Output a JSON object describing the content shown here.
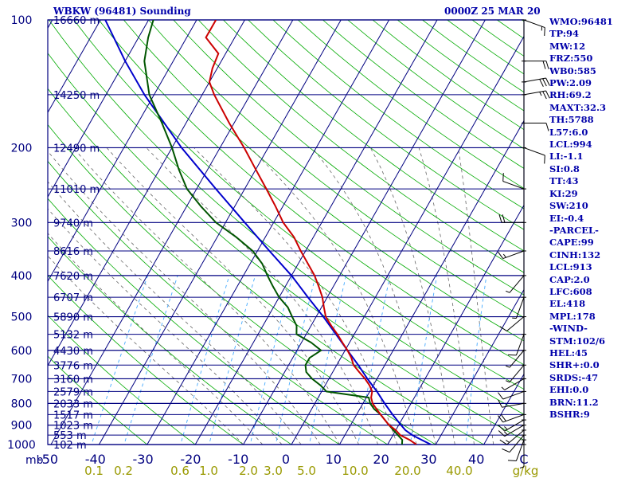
{
  "header": {
    "station": "WBKW (96481) Sounding",
    "time": "0000Z 25 MAR 20"
  },
  "indices": [
    "WMO:96481",
    "TP:94",
    "MW:12",
    "FRZ:550",
    "WB0:585",
    "PW:2.09",
    "RH:69.2",
    "MAXT:32.3",
    "TH:5788",
    "L57:6.0",
    "LCL:994",
    "LI:-1.1",
    "SI:0.8",
    "TT:43",
    "KI:29",
    "SW:210",
    "EI:-0.4",
    "-PARCEL-",
    "CAPE:99",
    "CINH:132",
    "LCL:913",
    "CAP:2.0",
    "LFC:608",
    "EL:418",
    "MPL:178",
    "-WIND-",
    "STM:102/6",
    "HEL:45",
    "SHR+:0.0",
    "SRDS:-47",
    "EHI:0.0",
    "BRN:11.2",
    "BSHR:9"
  ],
  "colors": {
    "frame": "#000080",
    "isotherm": "#000080",
    "dry_adiabat": "#00aa00",
    "moist_adiabat": "#666666",
    "mixing_ratio": "#44aaff",
    "temperature": "#cc0000",
    "dewpoint": "#005500",
    "parcel": "#0000cc",
    "wind": "#000000",
    "text": "#0000aa",
    "mr_label": "#999900"
  },
  "chart_data": {
    "type": "skew-t",
    "xlabel": "°C",
    "mixing_ratio_unit": "g/kg",
    "pressure_unit": "mb",
    "pressure_range": [
      1000,
      100
    ],
    "temp_range": [
      -50,
      50
    ],
    "pressure_ticks": [
      100,
      200,
      300,
      400,
      500,
      600,
      700,
      800,
      900,
      1000
    ],
    "pressure_tick_labels": [
      "100",
      "200",
      "300",
      "400",
      "500",
      "600",
      "700",
      "800",
      "900",
      "1000"
    ],
    "temp_ticks": [
      -50,
      -40,
      -30,
      -20,
      -10,
      0,
      10,
      20,
      30,
      40,
      50
    ],
    "temp_tick_labels": [
      "-50",
      "-40",
      "-30",
      "-20",
      "-10",
      "0",
      "10",
      "20",
      "30",
      "40",
      "C"
    ],
    "mixing_ratios": [
      0.1,
      0.2,
      0.6,
      1.0,
      2.0,
      3.0,
      5.0,
      10.0,
      20.0,
      40.0
    ],
    "mixing_ratio_labels": [
      "0.1",
      "0.2",
      "0.6",
      "1.0",
      "2.0",
      "3.0",
      "5.0",
      "10.0",
      "20.0",
      "40.0",
      "g/kg"
    ],
    "height_levels": [
      {
        "p": 100,
        "label": "16660 m"
      },
      {
        "p": 150,
        "label": "14250 m"
      },
      {
        "p": 200,
        "label": "12490 m"
      },
      {
        "p": 250,
        "label": "11010 m"
      },
      {
        "p": 300,
        "label": "9740 m"
      },
      {
        "p": 350,
        "label": "8616 m"
      },
      {
        "p": 400,
        "label": "7620 m"
      },
      {
        "p": 450,
        "label": "6707 m"
      },
      {
        "p": 500,
        "label": "5890 m"
      },
      {
        "p": 550,
        "label": "5132 m"
      },
      {
        "p": 600,
        "label": "4430 m"
      },
      {
        "p": 650,
        "label": "3776 m"
      },
      {
        "p": 700,
        "label": "3160 m"
      },
      {
        "p": 750,
        "label": "2579 m"
      },
      {
        "p": 800,
        "label": "2033 m"
      },
      {
        "p": 850,
        "label": "1517 m"
      },
      {
        "p": 900,
        "label": "1023 m"
      },
      {
        "p": 950,
        "label": "553 m"
      },
      {
        "p": 1000,
        "label": "102 m"
      }
    ],
    "temperature": [
      {
        "p": 1000,
        "t": 26
      },
      {
        "p": 975,
        "t": 24
      },
      {
        "p": 950,
        "t": 21.5
      },
      {
        "p": 925,
        "t": 20
      },
      {
        "p": 900,
        "t": 18
      },
      {
        "p": 875,
        "t": 16.5
      },
      {
        "p": 850,
        "t": 15
      },
      {
        "p": 825,
        "t": 13.5
      },
      {
        "p": 800,
        "t": 12
      },
      {
        "p": 775,
        "t": 11
      },
      {
        "p": 750,
        "t": 10.5
      },
      {
        "p": 725,
        "t": 9.2
      },
      {
        "p": 700,
        "t": 7.5
      },
      {
        "p": 675,
        "t": 5.5
      },
      {
        "p": 650,
        "t": 3.5
      },
      {
        "p": 625,
        "t": 2.2
      },
      {
        "p": 600,
        "t": 0.5
      },
      {
        "p": 575,
        "t": -1.5
      },
      {
        "p": 550,
        "t": -3.5
      },
      {
        "p": 525,
        "t": -5.8
      },
      {
        "p": 500,
        "t": -8
      },
      {
        "p": 475,
        "t": -9.5
      },
      {
        "p": 450,
        "t": -11
      },
      {
        "p": 425,
        "t": -13
      },
      {
        "p": 400,
        "t": -15.2
      },
      {
        "p": 375,
        "t": -18
      },
      {
        "p": 350,
        "t": -21
      },
      {
        "p": 325,
        "t": -24
      },
      {
        "p": 300,
        "t": -28
      },
      {
        "p": 275,
        "t": -31.5
      },
      {
        "p": 250,
        "t": -35.5
      },
      {
        "p": 225,
        "t": -40
      },
      {
        "p": 200,
        "t": -45
      },
      {
        "p": 175,
        "t": -51
      },
      {
        "p": 150,
        "t": -57.5
      },
      {
        "p": 140,
        "t": -60
      },
      {
        "p": 130,
        "t": -61
      },
      {
        "p": 120,
        "t": -61.5
      },
      {
        "p": 110,
        "t": -66
      },
      {
        "p": 100,
        "t": -66
      }
    ],
    "dewpoint": [
      {
        "p": 1000,
        "t": 23
      },
      {
        "p": 975,
        "t": 22.5
      },
      {
        "p": 950,
        "t": 21
      },
      {
        "p": 925,
        "t": 19.5
      },
      {
        "p": 900,
        "t": 18
      },
      {
        "p": 850,
        "t": 15
      },
      {
        "p": 825,
        "t": 13
      },
      {
        "p": 800,
        "t": 11.5
      },
      {
        "p": 775,
        "t": 10.5
      },
      {
        "p": 750,
        "t": 1
      },
      {
        "p": 725,
        "t": -1
      },
      {
        "p": 700,
        "t": -3.5
      },
      {
        "p": 675,
        "t": -5.5
      },
      {
        "p": 650,
        "t": -6.5
      },
      {
        "p": 625,
        "t": -6.5
      },
      {
        "p": 600,
        "t": -5
      },
      {
        "p": 575,
        "t": -8
      },
      {
        "p": 550,
        "t": -12
      },
      {
        "p": 525,
        "t": -13
      },
      {
        "p": 500,
        "t": -15
      },
      {
        "p": 475,
        "t": -17
      },
      {
        "p": 450,
        "t": -20
      },
      {
        "p": 425,
        "t": -22.5
      },
      {
        "p": 400,
        "t": -25
      },
      {
        "p": 375,
        "t": -27.5
      },
      {
        "p": 350,
        "t": -31
      },
      {
        "p": 325,
        "t": -36
      },
      {
        "p": 300,
        "t": -42
      },
      {
        "p": 275,
        "t": -47
      },
      {
        "p": 250,
        "t": -52
      },
      {
        "p": 225,
        "t": -56
      },
      {
        "p": 200,
        "t": -60
      },
      {
        "p": 175,
        "t": -65
      },
      {
        "p": 150,
        "t": -71
      },
      {
        "p": 125,
        "t": -76
      },
      {
        "p": 110,
        "t": -78
      },
      {
        "p": 100,
        "t": -79
      }
    ],
    "parcel": [
      {
        "p": 1000,
        "t": 29
      },
      {
        "p": 975,
        "t": 26.5
      },
      {
        "p": 950,
        "t": 24
      },
      {
        "p": 925,
        "t": 22
      },
      {
        "p": 900,
        "t": 20.5
      },
      {
        "p": 850,
        "t": 17.5
      },
      {
        "p": 800,
        "t": 14.5
      },
      {
        "p": 750,
        "t": 11.5
      },
      {
        "p": 700,
        "t": 8
      },
      {
        "p": 650,
        "t": 4.5
      },
      {
        "p": 600,
        "t": 0.5
      },
      {
        "p": 550,
        "t": -3.8
      },
      {
        "p": 500,
        "t": -8.5
      },
      {
        "p": 450,
        "t": -14
      },
      {
        "p": 400,
        "t": -20
      },
      {
        "p": 350,
        "t": -27.5
      },
      {
        "p": 300,
        "t": -36
      },
      {
        "p": 250,
        "t": -46
      },
      {
        "p": 200,
        "t": -58
      },
      {
        "p": 150,
        "t": -72
      },
      {
        "p": 125,
        "t": -80
      },
      {
        "p": 100,
        "t": -89
      }
    ],
    "wind": [
      {
        "p": 1000,
        "dir": 180,
        "spd": 5
      },
      {
        "p": 975,
        "dir": 200,
        "spd": 10
      },
      {
        "p": 950,
        "dir": 220,
        "spd": 10
      },
      {
        "p": 925,
        "dir": 230,
        "spd": 15
      },
      {
        "p": 900,
        "dir": 240,
        "spd": 15
      },
      {
        "p": 875,
        "dir": 240,
        "spd": 15
      },
      {
        "p": 850,
        "dir": 250,
        "spd": 20
      },
      {
        "p": 800,
        "dir": 260,
        "spd": 10
      },
      {
        "p": 750,
        "dir": 250,
        "spd": 10
      },
      {
        "p": 700,
        "dir": 240,
        "spd": 5
      },
      {
        "p": 650,
        "dir": 220,
        "spd": 5
      },
      {
        "p": 600,
        "dir": 220,
        "spd": 5
      },
      {
        "p": 550,
        "dir": 200,
        "spd": 10
      },
      {
        "p": 500,
        "dir": 230,
        "spd": 10
      },
      {
        "p": 450,
        "dir": 200,
        "spd": 5
      },
      {
        "p": 400,
        "dir": 220,
        "spd": 5
      },
      {
        "p": 350,
        "dir": 250,
        "spd": 15
      },
      {
        "p": 300,
        "dir": 270,
        "spd": 20
      },
      {
        "p": 250,
        "dir": 290,
        "spd": 10
      },
      {
        "p": 200,
        "dir": 110,
        "spd": 10
      },
      {
        "p": 175,
        "dir": 90,
        "spd": 10
      },
      {
        "p": 150,
        "dir": 80,
        "spd": 25
      },
      {
        "p": 140,
        "dir": 80,
        "spd": 30
      },
      {
        "p": 125,
        "dir": 90,
        "spd": 20
      },
      {
        "p": 100,
        "dir": 110,
        "spd": 15
      }
    ]
  }
}
